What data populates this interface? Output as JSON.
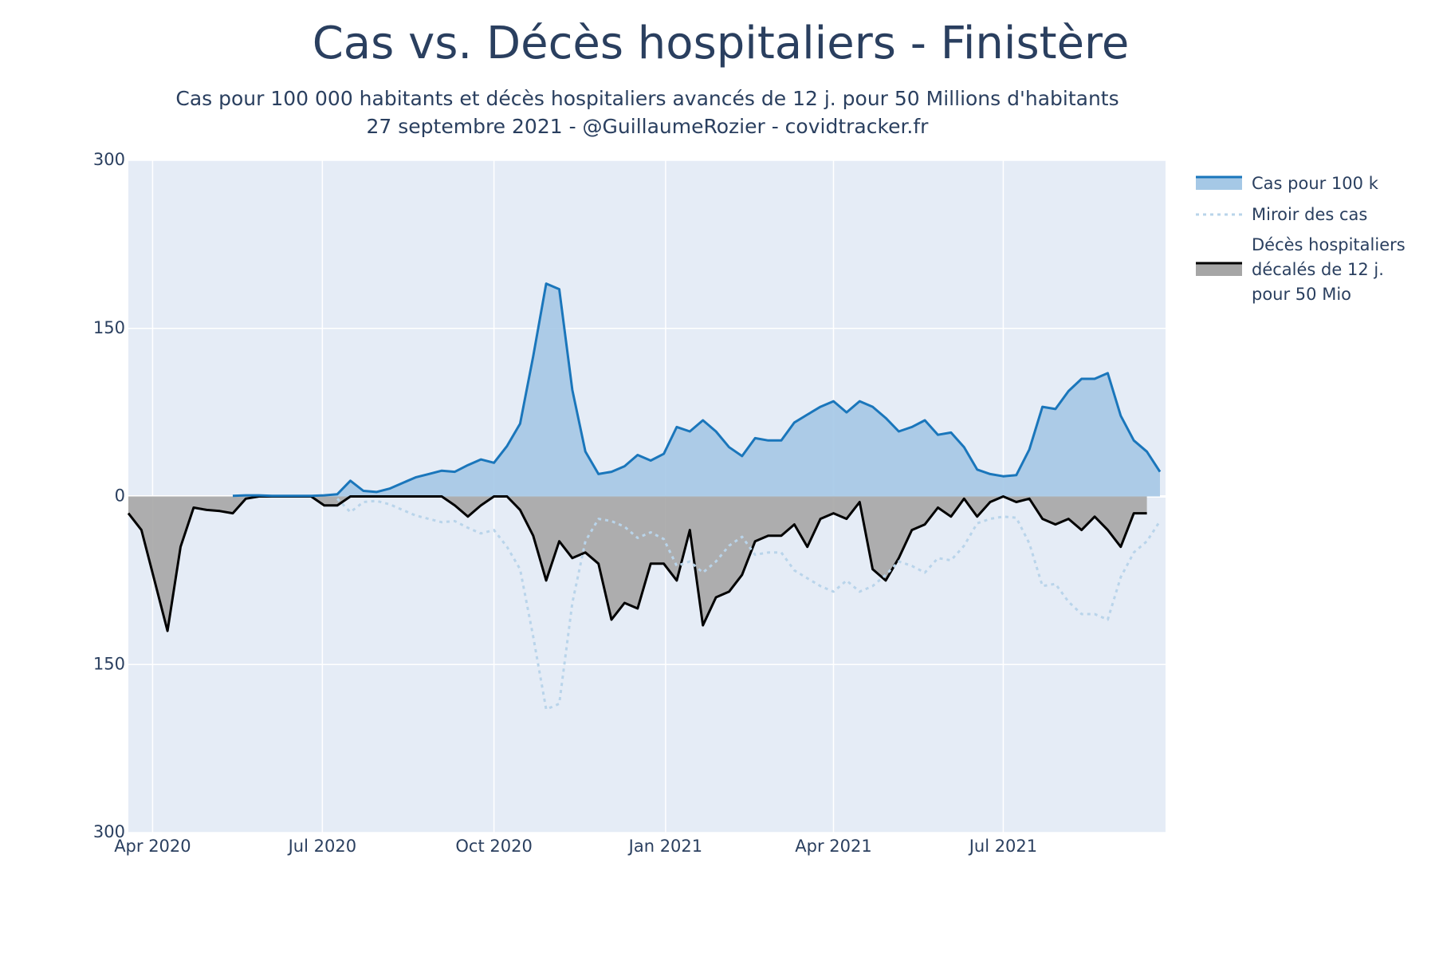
{
  "chart_data": {
    "type": "area-line",
    "title": "Cas vs. Décès hospitaliers - Finistère",
    "subtitle": [
      "Cas pour 100 000 habitants et décès hospitaliers avancés de 12 j. pour 50 Millions d'habitants",
      "27 septembre 2021 - @GuillaumeRozier - covidtracker.fr"
    ],
    "x": [
      "2020-03-19",
      "2020-03-26",
      "2020-04-02",
      "2020-04-09",
      "2020-04-16",
      "2020-04-23",
      "2020-04-30",
      "2020-05-07",
      "2020-05-14",
      "2020-05-21",
      "2020-05-28",
      "2020-06-04",
      "2020-06-11",
      "2020-06-18",
      "2020-06-25",
      "2020-07-02",
      "2020-07-09",
      "2020-07-16",
      "2020-07-23",
      "2020-07-30",
      "2020-08-06",
      "2020-08-13",
      "2020-08-20",
      "2020-08-27",
      "2020-09-03",
      "2020-09-10",
      "2020-09-17",
      "2020-09-24",
      "2020-10-01",
      "2020-10-08",
      "2020-10-15",
      "2020-10-22",
      "2020-10-29",
      "2020-11-05",
      "2020-11-12",
      "2020-11-19",
      "2020-11-26",
      "2020-12-03",
      "2020-12-10",
      "2020-12-17",
      "2020-12-24",
      "2020-12-31",
      "2021-01-07",
      "2021-01-14",
      "2021-01-21",
      "2021-01-28",
      "2021-02-04",
      "2021-02-11",
      "2021-02-18",
      "2021-02-25",
      "2021-03-04",
      "2021-03-11",
      "2021-03-18",
      "2021-03-25",
      "2021-04-01",
      "2021-04-08",
      "2021-04-15",
      "2021-04-22",
      "2021-04-29",
      "2021-05-06",
      "2021-05-13",
      "2021-05-20",
      "2021-05-27",
      "2021-06-03",
      "2021-06-10",
      "2021-06-17",
      "2021-06-24",
      "2021-07-01",
      "2021-07-08",
      "2021-07-15",
      "2021-07-22",
      "2021-07-29",
      "2021-08-05",
      "2021-08-12",
      "2021-08-19",
      "2021-08-26",
      "2021-09-02",
      "2021-09-09",
      "2021-09-16",
      "2021-09-23"
    ],
    "series": [
      {
        "name": "Cas pour 100 k",
        "color": "#1a76bb",
        "fill_color": "#a5c8e6",
        "dash": "solid",
        "values": [
          null,
          null,
          null,
          null,
          null,
          null,
          null,
          null,
          0.5,
          1,
          1,
          0.5,
          0.5,
          0.5,
          0.5,
          1,
          2,
          14,
          5,
          4,
          7,
          12,
          17,
          20,
          23,
          22,
          28,
          33,
          30,
          45,
          65,
          125,
          190,
          185,
          95,
          40,
          20,
          22,
          27,
          37,
          32,
          38,
          62,
          58,
          68,
          58,
          44,
          36,
          52,
          50,
          50,
          66,
          73,
          80,
          85,
          75,
          85,
          80,
          70,
          58,
          62,
          68,
          55,
          57,
          44,
          24,
          20,
          18,
          19,
          42,
          80,
          78,
          94,
          105,
          105,
          110,
          72,
          50,
          40,
          22
        ]
      },
      {
        "name": "Miroir des cas",
        "color": "#b9d4ea",
        "fill_color": null,
        "dash": "dot",
        "values": [
          null,
          null,
          null,
          null,
          null,
          null,
          null,
          null,
          null,
          null,
          null,
          null,
          null,
          null,
          null,
          null,
          -2,
          -14,
          -5,
          -4,
          -7,
          -12,
          -17,
          -20,
          -23,
          -22,
          -28,
          -33,
          -30,
          -45,
          -65,
          -125,
          -190,
          -185,
          -95,
          -40,
          -20,
          -22,
          -27,
          -37,
          -32,
          -38,
          -62,
          -58,
          -68,
          -58,
          -44,
          -36,
          -52,
          -50,
          -50,
          -66,
          -73,
          -80,
          -85,
          -75,
          -85,
          -80,
          -70,
          -58,
          -62,
          -68,
          -55,
          -57,
          -44,
          -24,
          -20,
          -18,
          -19,
          -42,
          -80,
          -78,
          -94,
          -105,
          -105,
          -110,
          -72,
          -50,
          -40,
          -22
        ]
      },
      {
        "name": "Décès hospitaliers décalés de 12 j. pour 50 Mio",
        "color": "#000000",
        "fill_color": "#a6a6a6",
        "dash": "solid",
        "values": [
          -15,
          -30,
          -75,
          -120,
          -45,
          -10,
          -12,
          -13,
          -15,
          -2,
          0,
          0,
          0,
          0,
          0,
          -8,
          -8,
          0,
          0,
          0,
          0,
          0,
          0,
          0,
          0,
          -8,
          -18,
          -8,
          0,
          0,
          -12,
          -35,
          -75,
          -40,
          -55,
          -50,
          -60,
          -110,
          -95,
          -100,
          -60,
          -60,
          -75,
          -30,
          -115,
          -90,
          -85,
          -70,
          -40,
          -35,
          -35,
          -25,
          -45,
          -20,
          -15,
          -20,
          -5,
          -65,
          -75,
          -55,
          -30,
          -25,
          -10,
          -18,
          -2,
          -18,
          -5,
          0,
          -5,
          -2,
          -20,
          -25,
          -20,
          -30,
          -18,
          -30,
          -45,
          -15,
          -15,
          null
        ]
      }
    ],
    "xlim": [
      "2020-03-19",
      "2021-09-26"
    ],
    "xticks": [
      {
        "value": "2020-04-01",
        "label": "Apr 2020"
      },
      {
        "value": "2020-07-01",
        "label": "Jul 2020"
      },
      {
        "value": "2020-10-01",
        "label": "Oct 2020"
      },
      {
        "value": "2021-01-01",
        "label": "Jan 2021"
      },
      {
        "value": "2021-04-01",
        "label": "Apr 2021"
      },
      {
        "value": "2021-07-01",
        "label": "Jul 2021"
      }
    ],
    "ylim": [
      -300,
      300
    ],
    "yticks": [
      300,
      150,
      0,
      {
        "value": -150,
        "label": "150"
      },
      {
        "value": -300,
        "label": "300"
      }
    ],
    "grid": true,
    "legend": "right"
  }
}
